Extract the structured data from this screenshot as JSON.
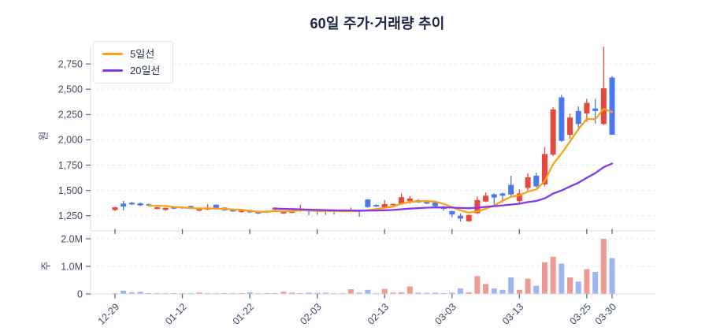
{
  "title": "60일 주가·거래량 추이",
  "legend": {
    "ma5_label": "5일선",
    "ma20_label": "20일선"
  },
  "colors": {
    "up": "#e8473d",
    "down": "#4a77ee",
    "volume_up": "#ee9a92",
    "volume_down": "#9fb5ef",
    "ma5": "#ffa014",
    "ma20": "#8438ee",
    "grid": "#e4e7ee",
    "spine": "#d8dce5",
    "tick_mark": "#5c6880",
    "tick_label": "#3d4963",
    "title": "#1a2547"
  },
  "axes": {
    "price": {
      "unit_label": "원",
      "ticks": [
        {
          "value": 2750,
          "label": "2,750"
        },
        {
          "value": 2500,
          "label": "2,500"
        },
        {
          "value": 2250,
          "label": "2,250"
        },
        {
          "value": 2000,
          "label": "2,000"
        },
        {
          "value": 1750,
          "label": "1,750"
        },
        {
          "value": 1500,
          "label": "1,500"
        },
        {
          "value": 1250,
          "label": "1,250"
        }
      ]
    },
    "volume": {
      "unit_label": "주",
      "ticks": [
        {
          "value": 2.0,
          "label": "2.0M"
        },
        {
          "value": 1.0,
          "label": "1.0M"
        },
        {
          "value": 0,
          "label": "0"
        }
      ]
    },
    "x": {
      "ticks": [
        {
          "index": 0,
          "label": "12-29"
        },
        {
          "index": 8,
          "label": "01-12"
        },
        {
          "index": 16,
          "label": "01-22"
        },
        {
          "index": 24,
          "label": "02-03"
        },
        {
          "index": 32,
          "label": "02-13"
        },
        {
          "index": 40,
          "label": "03-03"
        },
        {
          "index": 48,
          "label": "03-13"
        },
        {
          "index": 56,
          "label": "03-25"
        },
        {
          "index": 59,
          "label": "03-30"
        }
      ]
    }
  },
  "chart_data": {
    "type": "candlestick_with_volume",
    "period_days": 60,
    "ma_windows": [
      5,
      20
    ],
    "price_view_range": [
      1100,
      2930
    ],
    "volume_view_max_m": 2.2,
    "candle_fields": [
      "open",
      "high",
      "low",
      "close",
      "volume_m"
    ],
    "candles": [
      [
        1307,
        1340,
        1298,
        1333,
        0.02
      ],
      [
        1370,
        1396,
        1302,
        1341,
        0.12
      ],
      [
        1378,
        1386,
        1356,
        1362,
        0.06
      ],
      [
        1372,
        1381,
        1346,
        1352,
        0.08
      ],
      [
        1363,
        1371,
        1349,
        1356,
        0.03
      ],
      [
        1318,
        1338,
        1312,
        1333,
        0.03
      ],
      [
        1307,
        1331,
        1300,
        1328,
        0.02
      ],
      [
        1340,
        1345,
        1314,
        1320,
        0.02
      ],
      [
        1336,
        1342,
        1318,
        1324,
        0.01
      ],
      [
        1345,
        1350,
        1315,
        1321,
        0.03
      ],
      [
        1300,
        1319,
        1295,
        1315,
        0.05
      ],
      [
        1310,
        1365,
        1305,
        1331,
        0.03
      ],
      [
        1359,
        1363,
        1310,
        1316,
        0.02
      ],
      [
        1330,
        1334,
        1298,
        1303,
        0.02
      ],
      [
        1315,
        1320,
        1288,
        1293,
        0.03
      ],
      [
        1286,
        1303,
        1282,
        1299,
        0.02
      ],
      [
        1307,
        1311,
        1278,
        1283,
        0.06
      ],
      [
        1290,
        1294,
        1266,
        1272,
        0.02
      ],
      [
        1281,
        1302,
        1277,
        1299,
        0.02
      ],
      [
        1311,
        1334,
        1306,
        1330,
        0.02
      ],
      [
        1273,
        1292,
        1268,
        1290,
        0.08
      ],
      [
        1280,
        1296,
        1275,
        1292,
        0.05
      ],
      [
        1295,
        1360,
        1290,
        1308,
        0.02
      ],
      [
        1305,
        1310,
        1255,
        1295,
        0.05
      ],
      [
        1303,
        1308,
        1260,
        1293,
        0.04
      ],
      [
        1300,
        1305,
        1258,
        1290,
        0.05
      ],
      [
        1302,
        1306,
        1262,
        1292,
        0.02
      ],
      [
        1290,
        1303,
        1285,
        1300,
        0.03
      ],
      [
        1295,
        1330,
        1290,
        1308,
        0.17
      ],
      [
        1305,
        1309,
        1240,
        1292,
        0.05
      ],
      [
        1410,
        1415,
        1330,
        1336,
        0.15
      ],
      [
        1356,
        1362,
        1335,
        1341,
        0.03
      ],
      [
        1330,
        1405,
        1325,
        1365,
        0.18
      ],
      [
        1355,
        1370,
        1348,
        1367,
        0.05
      ],
      [
        1367,
        1470,
        1360,
        1433,
        0.06
      ],
      [
        1394,
        1445,
        1370,
        1420,
        0.27
      ],
      [
        1404,
        1412,
        1375,
        1381,
        0.05
      ],
      [
        1388,
        1394,
        1365,
        1370,
        0.04
      ],
      [
        1380,
        1386,
        1340,
        1345,
        0.05
      ],
      [
        1341,
        1346,
        1300,
        1318,
        0.03
      ],
      [
        1296,
        1300,
        1235,
        1262,
        0.05
      ],
      [
        1250,
        1272,
        1192,
        1222,
        0.2
      ],
      [
        1196,
        1262,
        1190,
        1257,
        0.06
      ],
      [
        1275,
        1440,
        1268,
        1405,
        0.65
      ],
      [
        1390,
        1480,
        1385,
        1448,
        0.36
      ],
      [
        1462,
        1470,
        1357,
        1430,
        0.2
      ],
      [
        1470,
        1478,
        1380,
        1448,
        0.15
      ],
      [
        1555,
        1645,
        1440,
        1460,
        0.6
      ],
      [
        1395,
        1510,
        1375,
        1470,
        0.15
      ],
      [
        1525,
        1670,
        1500,
        1630,
        0.55
      ],
      [
        1645,
        1675,
        1530,
        1540,
        0.3
      ],
      [
        1560,
        1930,
        1540,
        1860,
        1.15
      ],
      [
        1853,
        2320,
        1840,
        2300,
        1.35
      ],
      [
        2420,
        2445,
        1980,
        1990,
        1.1
      ],
      [
        2050,
        2260,
        2010,
        2220,
        0.6
      ],
      [
        2285,
        2330,
        2090,
        2157,
        0.45
      ],
      [
        2260,
        2405,
        2180,
        2365,
        0.9
      ],
      [
        2310,
        2405,
        2160,
        2285,
        0.8
      ],
      [
        2157,
        2920,
        2145,
        2510,
        2.0
      ],
      [
        2615,
        2630,
        2050,
        2050,
        1.3
      ]
    ]
  }
}
